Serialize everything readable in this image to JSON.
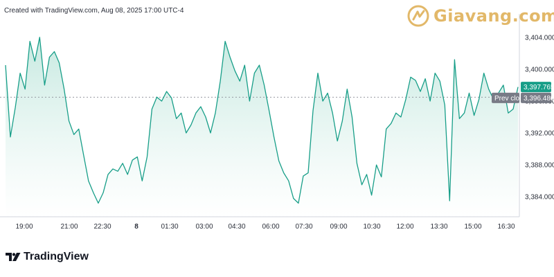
{
  "header": {
    "created_text": "Created with TradingView.com, Aug 08, 2025 17:00 UTC-4"
  },
  "watermark": {
    "text": "Giavang.com",
    "color": "#e2b869"
  },
  "footer": {
    "brand": "TradingView"
  },
  "colors": {
    "line": "#179e88",
    "fill_top": "#c4e8df",
    "badge": "#179e88",
    "prev_close_badge": "#787b86"
  },
  "chart_data": {
    "type": "area",
    "title": "",
    "xlabel": "",
    "ylabel": "",
    "ylim": [
      3381.5,
      3406.5
    ],
    "grid": false,
    "x_ticks": [
      "19:00",
      "21:00",
      "22:30",
      "8",
      "01:30",
      "03:00",
      "04:30",
      "06:00",
      "07:30",
      "09:00",
      "10:30",
      "12:00",
      "13:30",
      "15:00",
      "16:30"
    ],
    "y_ticks": [
      "3,404.000",
      "3,400.000",
      "3,396.000",
      "3,392.000",
      "3,388.000",
      "3,384.000"
    ],
    "y_tick_values": [
      3404,
      3400,
      3396,
      3392,
      3388,
      3384
    ],
    "last_price": {
      "label": "3,397.765",
      "value": 3397.765
    },
    "prev_close": {
      "label": "Prev close",
      "value_label": "3,396.480",
      "value": 3396.48
    },
    "series": [
      {
        "x_range": [
          "18:00",
          "17:00"
        ],
        "values": [
          3400.5,
          3391.5,
          3395.2,
          3399.5,
          3397.5,
          3403.5,
          3401.0,
          3404.0,
          3398.0,
          3401.5,
          3402.2,
          3400.8,
          3397.5,
          3393.5,
          3391.8,
          3392.5,
          3389.2,
          3386.0,
          3384.5,
          3383.2,
          3384.5,
          3386.8,
          3387.5,
          3387.2,
          3388.2,
          3386.8,
          3388.6,
          3389.0,
          3386.0,
          3389.0,
          3395.0,
          3396.5,
          3396.0,
          3397.2,
          3396.4,
          3393.8,
          3394.5,
          3392.0,
          3393.0,
          3394.5,
          3395.3,
          3394.0,
          3392.0,
          3394.5,
          3398.5,
          3403.5,
          3401.5,
          3399.8,
          3398.5,
          3400.5,
          3396.0,
          3399.5,
          3400.5,
          3398.0,
          3394.8,
          3391.5,
          3388.5,
          3387.0,
          3386.0,
          3383.8,
          3383.2,
          3386.6,
          3387.0,
          3394.8,
          3399.5,
          3396.0,
          3397.0,
          3394.5,
          3391.0,
          3393.5,
          3397.5,
          3394.0,
          3388.2,
          3385.5,
          3386.8,
          3384.2,
          3388.0,
          3386.5,
          3392.5,
          3393.2,
          3394.5,
          3394.0,
          3396.2,
          3399.0,
          3398.6,
          3397.2,
          3398.8,
          3396.0,
          3399.5,
          3398.5,
          3395.5,
          3383.5,
          3401.2,
          3393.8,
          3394.5,
          3397.0,
          3394.2,
          3396.2,
          3399.5,
          3397.5,
          3396.2,
          3397.0,
          3398.0,
          3394.5,
          3395.0,
          3397.765
        ]
      }
    ]
  }
}
